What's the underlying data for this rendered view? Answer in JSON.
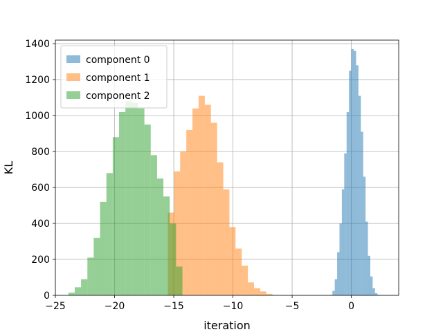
{
  "chart_data": {
    "type": "bar",
    "subtype": "histogram",
    "title": "",
    "xlabel": "iteration",
    "ylabel": "KL",
    "xlim": [
      -25,
      4
    ],
    "ylim": [
      0,
      1420
    ],
    "xticks": [
      -25,
      -20,
      -15,
      -10,
      -5,
      0
    ],
    "yticks": [
      0,
      200,
      400,
      600,
      800,
      1000,
      1200,
      1400
    ],
    "grid": true,
    "legend_position": "upper-left",
    "bar_opacity": 0.5,
    "series": [
      {
        "name": "component 0",
        "color": "#1f77b4",
        "bin_start": -1.8,
        "bin_width": 0.2,
        "counts": [
          3,
          25,
          90,
          240,
          400,
          590,
          790,
          1020,
          1250,
          1370,
          1360,
          1280,
          1110,
          910,
          660,
          410,
          220,
          105,
          40,
          12,
          3
        ]
      },
      {
        "name": "component 1",
        "color": "#ff7f0e",
        "bin_start": -15.5,
        "bin_width": 0.52,
        "counts": [
          460,
          690,
          800,
          920,
          1040,
          1110,
          1060,
          960,
          740,
          590,
          380,
          260,
          165,
          72,
          40,
          22,
          8
        ]
      },
      {
        "name": "component 2",
        "color": "#2ca02c",
        "bin_start": -23.9,
        "bin_width": 0.535,
        "counts": [
          15,
          45,
          90,
          210,
          320,
          520,
          680,
          880,
          1020,
          1080,
          1070,
          1040,
          950,
          780,
          650,
          550,
          400,
          160
        ]
      }
    ]
  }
}
